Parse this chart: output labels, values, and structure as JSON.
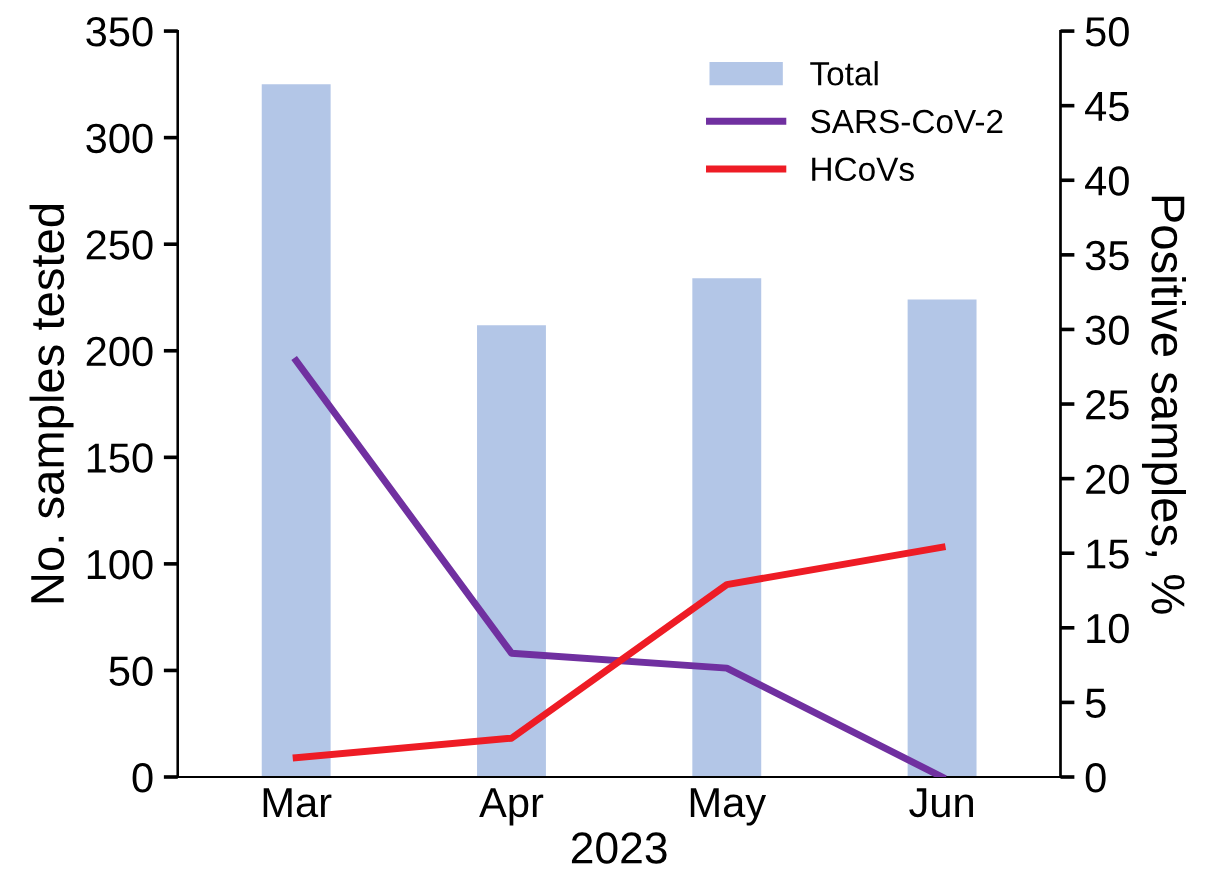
{
  "chart_data": {
    "type": "bar",
    "xlabel": "2023",
    "ylabel": "No. samples tested",
    "y2label": "Positive samples, %",
    "categories": [
      "Mar",
      "Apr",
      "May",
      "Jun"
    ],
    "series": [
      {
        "name": "Total",
        "color": "#b3c6e7",
        "values": [
          325,
          212,
          234,
          224
        ]
      },
      {
        "name": "SARS-CoV-2",
        "type": "line",
        "axis": "y2",
        "color": "#7030a0",
        "values": [
          27.9,
          8.3,
          7.3,
          0
        ]
      },
      {
        "name": "HCoVs",
        "type": "line",
        "axis": "y2",
        "color": "#ee1c25",
        "values": [
          1.3,
          2.6,
          12.9,
          15.4
        ]
      }
    ],
    "ylim": [
      0,
      350
    ],
    "yticks": [
      0,
      50,
      100,
      150,
      200,
      250,
      300,
      350
    ],
    "y2lim": [
      0,
      50
    ],
    "y2ticks": [
      0,
      5,
      10,
      15,
      20,
      25,
      30,
      35,
      40,
      45,
      50
    ],
    "grid": false,
    "legend": "top right"
  }
}
